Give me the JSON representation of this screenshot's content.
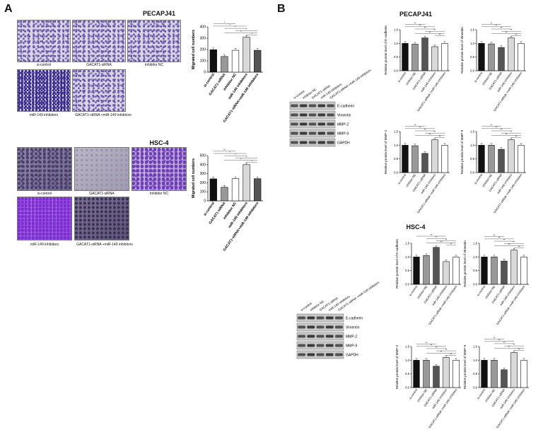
{
  "panel_a": {
    "letter": "A",
    "pecapj41": {
      "title": "PECAPJ41",
      "image_captions": [
        "si-control",
        "GACAT1-siRNA",
        "inhibitor NC",
        "miR-149 inhibitors",
        "GACAT1-siRNA +miR-149 inhibitors"
      ]
    },
    "hsc4": {
      "title": "HSC-4",
      "image_captions": [
        "si-control",
        "GACAT1-siRNA",
        "inhibitor NC",
        "miR-149 inhibitors",
        "GACAT1-siRNA +miR-149 inhibitors"
      ]
    }
  },
  "panel_b": {
    "letter": "B",
    "pecapj41_title": "PECAPJ41",
    "hsc4_title": "HSC-4",
    "wb_lanes": [
      "si-control",
      "inhibitor NC",
      "GACAT1-siRNA",
      "miR-149 inhibitors",
      "GACAT1-siRNA +miR-149 inhibitors"
    ],
    "wb_proteins": [
      "E-cadherin",
      "Vimentin",
      "MMP-2",
      "MMP-9",
      "GAPDH"
    ]
  },
  "colors": {
    "black": "#111111",
    "dark_gray": "#555555",
    "mid_gray": "#999999",
    "light_gray": "#d9d9d9",
    "white_bar": "#ffffff"
  },
  "chart_data": [
    {
      "type": "bar",
      "id": "migration-pecapj41",
      "categories": [
        "si-control",
        "GACAT1-siRNA",
        "inhibitor NC",
        "miR-149 inhibitors",
        "GACAT1-siRNA+miR-149 inhibitors"
      ],
      "values": [
        198,
        138,
        193,
        308,
        193
      ],
      "ylabel": "Migrated cell numbers",
      "ylim": [
        0,
        400
      ],
      "yticks": [
        "0",
        "100",
        "200",
        "300",
        "400"
      ],
      "significance": [
        "*",
        "*",
        "*",
        "*",
        "*",
        "*"
      ]
    },
    {
      "type": "bar",
      "id": "migration-hsc4",
      "categories": [
        "si-control",
        "GACAT1-siRNA",
        "inhibitor NC",
        "miR-149 inhibitors",
        "GACAT1-siRNA+miR-149 inhibitors"
      ],
      "values": [
        243,
        150,
        245,
        400,
        245
      ],
      "ylabel": "Migrated cell numbers",
      "ylim": [
        0,
        500
      ],
      "yticks": [
        "0",
        "100",
        "200",
        "300",
        "400",
        "500"
      ],
      "significance": [
        "**",
        "*",
        "*",
        "*",
        "*",
        "*"
      ]
    },
    {
      "type": "bar",
      "id": "pe-ecad",
      "categories": [
        "si-control",
        "inhibitor NC",
        "GACAT1-siRNA",
        "miR-149 inhibitors",
        "GACAT1-siRNA +miR-149 inhibitors"
      ],
      "values": [
        1.0,
        0.97,
        1.2,
        0.88,
        1.0
      ],
      "ylabel": "Relative protein level of E-cadherin",
      "ylim": [
        0,
        1.5
      ],
      "yticks": [
        "0.0",
        "0.5",
        "1.0",
        "1.5"
      ],
      "significance": [
        "**",
        "**",
        "**",
        "**",
        "**",
        "**"
      ]
    },
    {
      "type": "bar",
      "id": "pe-vim",
      "categories": [
        "si-control",
        "inhibitor NC",
        "GACAT1-siRNA",
        "miR-149 inhibitors",
        "GACAT1-siRNA +miR-149 inhibitors"
      ],
      "values": [
        1.0,
        0.98,
        0.85,
        1.2,
        1.0
      ],
      "ylabel": "Relative protein level of Vimentin",
      "ylim": [
        0,
        1.5
      ],
      "yticks": [
        "0.0",
        "0.5",
        "1.0",
        "1.5"
      ],
      "significance": [
        "**",
        "**",
        "**",
        "**",
        "**",
        "**"
      ]
    },
    {
      "type": "bar",
      "id": "pe-mmp2",
      "categories": [
        "si-control",
        "inhibitor NC",
        "GACAT1-siRNA",
        "miR-149 inhibitors",
        "GACAT1-siRNA +miR-149 inhibitors"
      ],
      "values": [
        1.0,
        0.98,
        0.7,
        1.2,
        1.0
      ],
      "ylabel": "Relative protein level of MMP-2",
      "ylim": [
        0,
        1.5
      ],
      "yticks": [
        "0.0",
        "0.5",
        "1.0",
        "1.5"
      ],
      "significance": [
        "**",
        "**",
        "**",
        "**",
        "**",
        "**"
      ]
    },
    {
      "type": "bar",
      "id": "pe-mmp9",
      "categories": [
        "si-control",
        "inhibitor NC",
        "GACAT1-siRNA",
        "miR-149 inhibitors",
        "GACAT1-siRNA +miR-149 inhibitors"
      ],
      "values": [
        1.0,
        1.0,
        0.85,
        1.2,
        1.0
      ],
      "ylabel": "Relative protein level of MMP-9",
      "ylim": [
        0,
        1.5
      ],
      "yticks": [
        "0.0",
        "0.5",
        "1.0",
        "1.5"
      ],
      "significance": [
        "**",
        "**",
        "**",
        "**",
        "**",
        "**"
      ]
    },
    {
      "type": "bar",
      "id": "hs-ecad",
      "categories": [
        "si-control",
        "inhibitor NC",
        "GACAT1-siRNA",
        "miR-149 inhibitors",
        "GACAT1-siRNA +miR-149 inhibitors"
      ],
      "values": [
        1.0,
        1.05,
        1.35,
        0.83,
        1.0
      ],
      "ylabel": "Relative protein level of E-cadherin",
      "ylim": [
        0,
        1.5
      ],
      "yticks": [
        "0.0",
        "0.5",
        "1.0",
        "1.5"
      ],
      "significance": [
        "**",
        "**",
        "**",
        "**",
        "**",
        "**"
      ]
    },
    {
      "type": "bar",
      "id": "hs-vim",
      "categories": [
        "si-control",
        "inhibitor NC",
        "GACAT1-siRNA",
        "miR-149 inhibitors",
        "GACAT1-siRNA +miR-149 inhibitors"
      ],
      "values": [
        1.0,
        1.0,
        0.85,
        1.25,
        1.0
      ],
      "ylabel": "Relative protein level of Vimentin",
      "ylim": [
        0,
        1.5
      ],
      "yticks": [
        "0.0",
        "0.5",
        "1.0",
        "1.5"
      ],
      "significance": [
        "**",
        "**",
        "**",
        "**",
        "**",
        "**"
      ]
    },
    {
      "type": "bar",
      "id": "hs-mmp2",
      "categories": [
        "si-control",
        "inhibitor NC",
        "GACAT1-siRNA",
        "miR-149 inhibitors",
        "GACAT1-siRNA +miR-149 inhibitors"
      ],
      "values": [
        1.0,
        1.0,
        0.78,
        1.1,
        1.0
      ],
      "ylabel": "Relative protein level of MMP-2",
      "ylim": [
        0,
        1.5
      ],
      "yticks": [
        "0.0",
        "0.5",
        "1.0",
        "1.5"
      ],
      "significance": [
        "**",
        "**",
        "**",
        "**",
        "**",
        "**"
      ]
    },
    {
      "type": "bar",
      "id": "hs-mmp9",
      "categories": [
        "si-control",
        "inhibitor NC",
        "GACAT1-siRNA",
        "miR-149 inhibitors",
        "GACAT1-siRNA +miR-149 inhibitors"
      ],
      "values": [
        1.0,
        1.0,
        0.65,
        1.28,
        1.0
      ],
      "ylabel": "Relative protein level of MMP-9",
      "ylim": [
        0,
        1.5
      ],
      "yticks": [
        "0.0",
        "0.5",
        "1.0",
        "1.5"
      ],
      "significance": [
        "**",
        "**",
        "**",
        "**",
        "**",
        "**"
      ]
    }
  ]
}
